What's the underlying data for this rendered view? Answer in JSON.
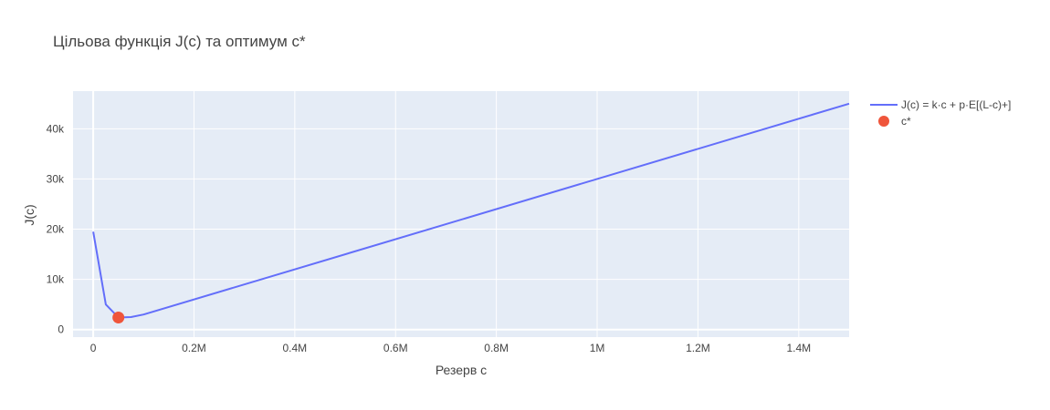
{
  "chart_data": {
    "type": "line",
    "title": "Цільова функція J(c) та оптимум c*",
    "xlabel": "Резерв c",
    "ylabel": "J(c)",
    "xlim": [
      -40000,
      1500000
    ],
    "ylim": [
      -1500,
      47500
    ],
    "x_ticks": [
      0,
      200000,
      400000,
      600000,
      800000,
      1000000,
      1200000,
      1400000
    ],
    "x_tick_labels": [
      "0",
      "0.2M",
      "0.4M",
      "0.6M",
      "0.8M",
      "1M",
      "1.2M",
      "1.4M"
    ],
    "y_ticks": [
      0,
      10000,
      20000,
      30000,
      40000
    ],
    "y_tick_labels": [
      "0",
      "10k",
      "20k",
      "30k",
      "40k"
    ],
    "grid": true,
    "legend_position": "top-right",
    "colors": {
      "line": "#636efa",
      "optimum": "#ef553b",
      "plot_bg": "#e5ecf6",
      "grid": "#ffffff"
    },
    "series": [
      {
        "name": "J(c) = k·c + p·E[(L-c)+]",
        "mode": "line",
        "x": [
          0,
          25000,
          50000,
          75000,
          100000,
          1500000
        ],
        "y": [
          19500,
          5000,
          2400,
          2500,
          3000,
          45000
        ]
      },
      {
        "name": "c*",
        "mode": "markers",
        "x": [
          50000
        ],
        "y": [
          2400
        ]
      }
    ]
  }
}
